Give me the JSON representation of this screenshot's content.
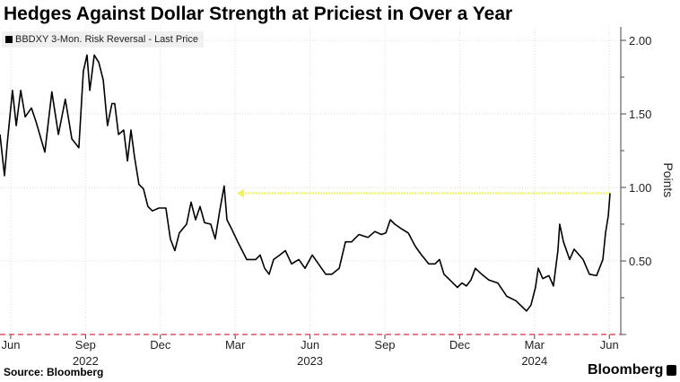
{
  "title": "Hedges Against Dollar Strength at Priciest in Over a Year",
  "source": "Source: Bloomberg",
  "brand": "Bloomberg",
  "chart_data": {
    "type": "line",
    "title": "Hedges Against Dollar Strength at Priciest in Over a Year",
    "xlabel": "",
    "ylabel": "Points",
    "x_unit": "months since 2022-06-01",
    "xlim": [
      -0.43,
      24.46
    ],
    "ylim": [
      0,
      2.05
    ],
    "yticks": [
      0.5,
      1.0,
      1.5,
      2.0
    ],
    "ytick_labels": [
      "0.50",
      "1.00",
      "1.50",
      "2.00"
    ],
    "xticks": [
      0,
      3,
      6,
      9,
      12,
      15,
      18,
      21,
      24
    ],
    "xtick_labels": [
      "Jun",
      "Sep",
      "Dec",
      "Mar",
      "Jun",
      "Sep",
      "Dec",
      "Mar",
      "Jun"
    ],
    "year_labels": [
      {
        "x": 3,
        "label": "2022"
      },
      {
        "x": 12,
        "label": "2023"
      },
      {
        "x": 21,
        "label": "2024"
      }
    ],
    "grid": true,
    "legend": {
      "position": "top-left",
      "entries": [
        "BBDXY 3-Mon. Risk Reversal - Last Price"
      ]
    },
    "series": [
      {
        "name": "BBDXY 3-Mon. Risk Reversal - Last Price",
        "color": "#000000",
        "x": [
          -0.43,
          -0.25,
          -0.14,
          0.07,
          0.22,
          0.4,
          0.58,
          0.83,
          1.01,
          1.37,
          1.65,
          1.91,
          2.19,
          2.45,
          2.73,
          2.91,
          3.06,
          3.17,
          3.35,
          3.53,
          3.71,
          3.88,
          4.06,
          4.17,
          4.32,
          4.53,
          4.68,
          4.82,
          4.96,
          5.14,
          5.32,
          5.5,
          5.68,
          5.94,
          6.22,
          6.4,
          6.58,
          6.76,
          7.05,
          7.23,
          7.41,
          7.59,
          7.77,
          8.02,
          8.2,
          8.38,
          8.56,
          8.67,
          8.85,
          9.1,
          9.28,
          9.46,
          9.82,
          10.0,
          10.18,
          10.36,
          10.54,
          10.79,
          11.01,
          11.26,
          11.55,
          11.8,
          12.09,
          12.34,
          12.63,
          12.88,
          13.17,
          13.42,
          13.67,
          13.96,
          14.32,
          14.6,
          14.86,
          15.04,
          15.22,
          15.4,
          15.65,
          15.94,
          16.22,
          16.47,
          16.76,
          17.01,
          17.19,
          17.37,
          17.55,
          17.91,
          18.09,
          18.27,
          18.45,
          18.63,
          18.88,
          19.17,
          19.53,
          19.89,
          20.25,
          20.68,
          20.86,
          21.04,
          21.15,
          21.33,
          21.58,
          21.76,
          21.94,
          22.01,
          22.16,
          22.41,
          22.59,
          22.95,
          23.2,
          23.49,
          23.74,
          23.85,
          23.96,
          24.03
        ],
        "y": [
          1.36,
          1.08,
          1.3,
          1.66,
          1.42,
          1.66,
          1.48,
          1.54,
          1.45,
          1.24,
          1.65,
          1.36,
          1.6,
          1.33,
          1.27,
          1.79,
          1.9,
          1.66,
          1.9,
          1.85,
          1.73,
          1.42,
          1.57,
          1.57,
          1.36,
          1.39,
          1.18,
          1.39,
          1.21,
          1.02,
          0.99,
          0.87,
          0.84,
          0.86,
          0.86,
          0.65,
          0.57,
          0.69,
          0.75,
          0.9,
          0.78,
          0.87,
          0.76,
          0.75,
          0.65,
          0.84,
          1.01,
          0.78,
          0.72,
          0.63,
          0.57,
          0.51,
          0.51,
          0.54,
          0.45,
          0.41,
          0.51,
          0.54,
          0.57,
          0.48,
          0.51,
          0.45,
          0.54,
          0.48,
          0.41,
          0.41,
          0.45,
          0.63,
          0.63,
          0.68,
          0.66,
          0.7,
          0.68,
          0.69,
          0.78,
          0.75,
          0.72,
          0.69,
          0.6,
          0.54,
          0.48,
          0.48,
          0.51,
          0.41,
          0.38,
          0.32,
          0.35,
          0.33,
          0.37,
          0.45,
          0.41,
          0.37,
          0.35,
          0.26,
          0.23,
          0.16,
          0.2,
          0.32,
          0.45,
          0.38,
          0.4,
          0.33,
          0.57,
          0.75,
          0.63,
          0.51,
          0.58,
          0.51,
          0.41,
          0.4,
          0.51,
          0.69,
          0.81,
          0.96
        ]
      }
    ],
    "annotations": [
      {
        "type": "arrow",
        "color": "#f2f25a",
        "y": 0.96,
        "x_from": 24.03,
        "x_to": 9.07
      },
      {
        "type": "hline",
        "color": "#e0506a",
        "style": "dashed",
        "y": 0
      }
    ]
  }
}
